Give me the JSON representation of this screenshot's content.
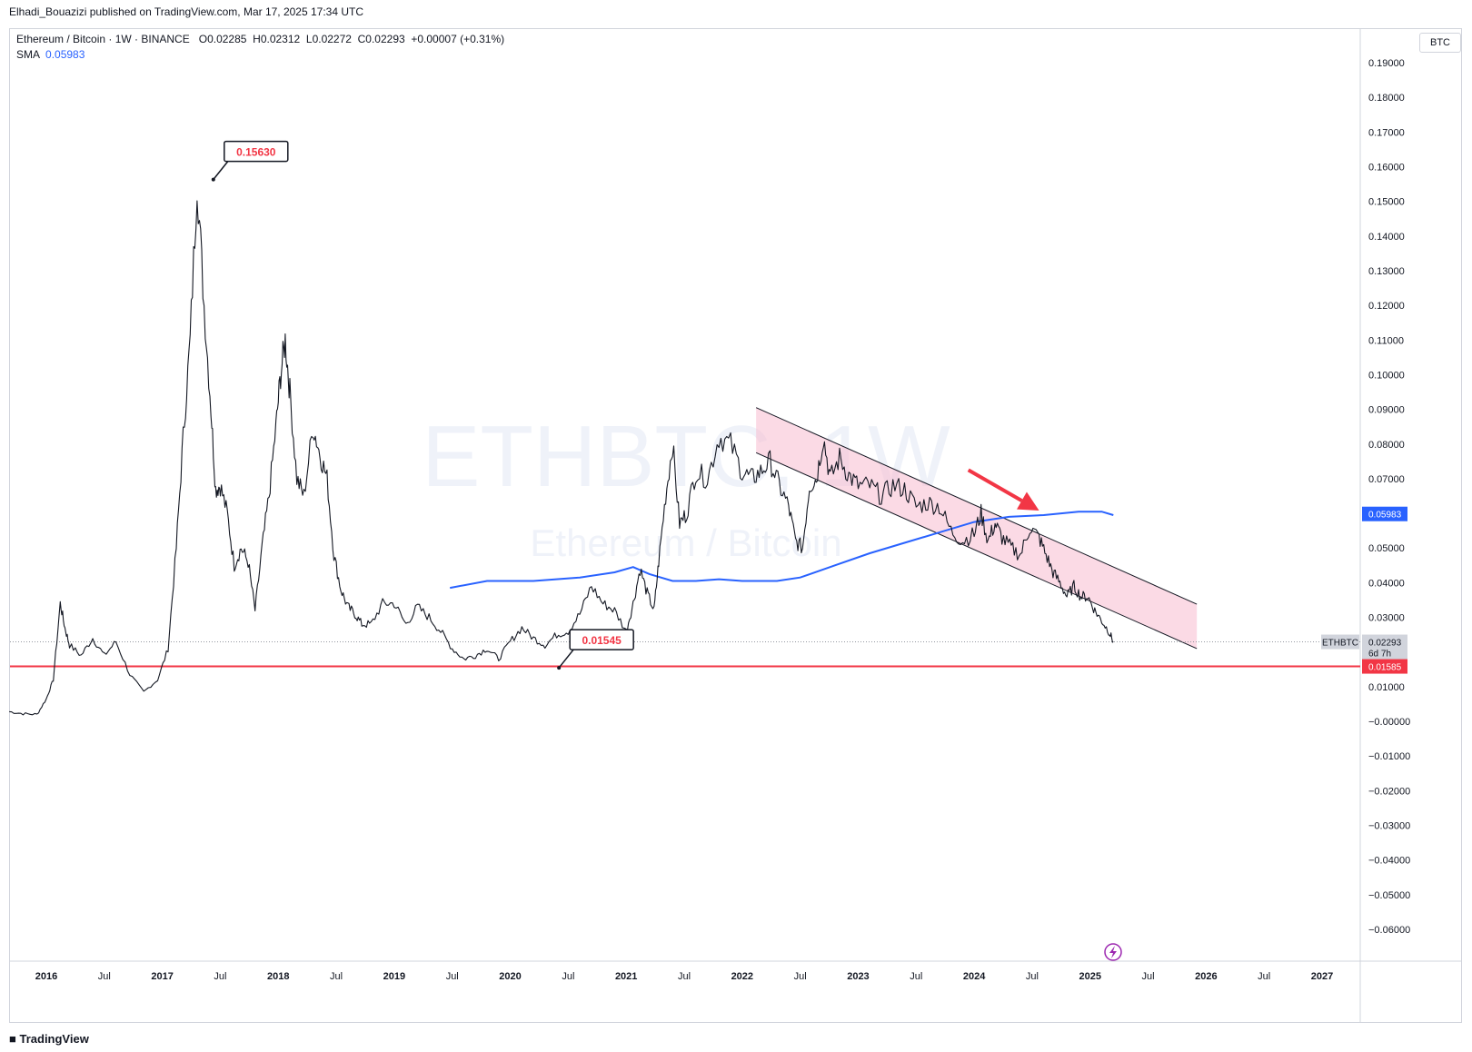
{
  "header": {
    "published_by": "Elhadi_Bouazizi published on TradingView.com, Mar 17, 2025 17:34 UTC"
  },
  "legend": {
    "symbol": "Ethereum / Bitcoin · 1W · BINANCE",
    "open_label": "O",
    "open": "0.02285",
    "high_label": "H",
    "high": "0.02312",
    "low_label": "L",
    "low": "0.02272",
    "close_label": "C",
    "close": "0.02293",
    "change": "+0.00007 (+0.31%)",
    "sma_label": "SMA",
    "sma_value": "0.05983"
  },
  "watermark": {
    "ticker": "ETHBTC, 1W",
    "name": "Ethereum / Bitcoin"
  },
  "axis": {
    "currency": "BTC"
  },
  "brand": {
    "logo_text": "TradingView"
  },
  "colors": {
    "up": "#131722",
    "sma": "#2962ff",
    "support": "#f23645",
    "channel_fill": "#f8bbd0",
    "annotation_text": "#f23645",
    "arrow": "#f23645"
  },
  "chart_data": {
    "type": "line",
    "symbol": "ETHBTC",
    "interval": "1W",
    "exchange": "BINANCE",
    "ylim": [
      -0.065,
      0.195
    ],
    "y_ticks": [
      "0.19000",
      "0.18000",
      "0.17000",
      "0.16000",
      "0.15000",
      "0.14000",
      "0.13000",
      "0.12000",
      "0.11000",
      "0.10000",
      "0.09000",
      "0.08000",
      "0.07000",
      "0.06000",
      "0.05000",
      "0.04000",
      "0.03000",
      "0.02000",
      "0.01000",
      "−0.00000",
      "−0.01000",
      "−0.02000",
      "−0.03000",
      "−0.04000",
      "−0.05000",
      "−0.06000"
    ],
    "y_tick_values": [
      0.19,
      0.18,
      0.17,
      0.16,
      0.15,
      0.14,
      0.13,
      0.12,
      0.11,
      0.1,
      0.09,
      0.08,
      0.07,
      0.06,
      0.05,
      0.04,
      0.03,
      0.02,
      0.01,
      0.0,
      -0.01,
      -0.02,
      -0.03,
      -0.04,
      -0.05,
      -0.06
    ],
    "x_ticks": [
      {
        "label": "2016",
        "t": 2016.0
      },
      {
        "label": "Jul",
        "t": 2016.5
      },
      {
        "label": "2017",
        "t": 2017.0
      },
      {
        "label": "Jul",
        "t": 2017.5
      },
      {
        "label": "2018",
        "t": 2018.0
      },
      {
        "label": "Jul",
        "t": 2018.5
      },
      {
        "label": "2019",
        "t": 2019.0
      },
      {
        "label": "Jul",
        "t": 2019.5
      },
      {
        "label": "2020",
        "t": 2020.0
      },
      {
        "label": "Jul",
        "t": 2020.5
      },
      {
        "label": "2021",
        "t": 2021.0
      },
      {
        "label": "Jul",
        "t": 2021.5
      },
      {
        "label": "2022",
        "t": 2022.0
      },
      {
        "label": "Jul",
        "t": 2022.5
      },
      {
        "label": "2023",
        "t": 2023.0
      },
      {
        "label": "Jul",
        "t": 2023.5
      },
      {
        "label": "2024",
        "t": 2024.0
      },
      {
        "label": "Jul",
        "t": 2024.5
      },
      {
        "label": "2025",
        "t": 2025.0
      },
      {
        "label": "Jul",
        "t": 2025.5
      },
      {
        "label": "2026",
        "t": 2026.0
      },
      {
        "label": "Jul",
        "t": 2026.5
      },
      {
        "label": "2027",
        "t": 2027.0
      }
    ],
    "xlim": [
      2015.68,
      2027.42
    ],
    "price_series": {
      "t": [
        2015.68,
        2015.8,
        2015.92,
        2016.0,
        2016.06,
        2016.12,
        2016.16,
        2016.2,
        2016.3,
        2016.4,
        2016.5,
        2016.6,
        2016.72,
        2016.84,
        2016.96,
        2017.05,
        2017.12,
        2017.18,
        2017.24,
        2017.3,
        2017.36,
        2017.42,
        2017.46,
        2017.5,
        2017.56,
        2017.62,
        2017.68,
        2017.74,
        2017.8,
        2017.86,
        2017.92,
        2017.98,
        2018.02,
        2018.06,
        2018.1,
        2018.16,
        2018.22,
        2018.3,
        2018.36,
        2018.42,
        2018.48,
        2018.54,
        2018.6,
        2018.66,
        2018.72,
        2018.8,
        2018.9,
        2019.0,
        2019.1,
        2019.2,
        2019.3,
        2019.4,
        2019.5,
        2019.6,
        2019.7,
        2019.8,
        2019.9,
        2020.0,
        2020.1,
        2020.2,
        2020.3,
        2020.4,
        2020.5,
        2020.6,
        2020.7,
        2020.8,
        2020.9,
        2021.0,
        2021.06,
        2021.12,
        2021.18,
        2021.24,
        2021.28,
        2021.34,
        2021.4,
        2021.46,
        2021.52,
        2021.6,
        2021.7,
        2021.8,
        2021.9,
        2022.0,
        2022.08,
        2022.16,
        2022.24,
        2022.32,
        2022.4,
        2022.46,
        2022.52,
        2022.58,
        2022.64,
        2022.7,
        2022.76,
        2022.84,
        2022.92,
        2023.0,
        2023.1,
        2023.2,
        2023.3,
        2023.4,
        2023.5,
        2023.6,
        2023.7,
        2023.8,
        2023.9,
        2024.0,
        2024.06,
        2024.12,
        2024.18,
        2024.24,
        2024.32,
        2024.4,
        2024.48,
        2024.56,
        2024.62,
        2024.68,
        2024.74,
        2024.8,
        2024.86,
        2024.92,
        2024.98,
        2025.04,
        2025.1,
        2025.16,
        2025.2
      ],
      "v": [
        0.0028,
        0.0022,
        0.002,
        0.0065,
        0.012,
        0.034,
        0.027,
        0.022,
        0.019,
        0.024,
        0.019,
        0.023,
        0.0135,
        0.0085,
        0.012,
        0.021,
        0.05,
        0.082,
        0.11,
        0.156,
        0.12,
        0.09,
        0.067,
        0.068,
        0.06,
        0.045,
        0.05,
        0.046,
        0.032,
        0.05,
        0.065,
        0.085,
        0.1,
        0.11,
        0.095,
        0.07,
        0.065,
        0.085,
        0.077,
        0.07,
        0.048,
        0.038,
        0.033,
        0.031,
        0.028,
        0.028,
        0.034,
        0.034,
        0.028,
        0.033,
        0.03,
        0.026,
        0.021,
        0.018,
        0.019,
        0.021,
        0.018,
        0.023,
        0.027,
        0.024,
        0.022,
        0.025,
        0.026,
        0.031,
        0.039,
        0.034,
        0.032,
        0.026,
        0.034,
        0.044,
        0.037,
        0.032,
        0.046,
        0.065,
        0.08,
        0.057,
        0.06,
        0.072,
        0.07,
        0.082,
        0.08,
        0.072,
        0.07,
        0.072,
        0.075,
        0.068,
        0.062,
        0.052,
        0.05,
        0.068,
        0.07,
        0.082,
        0.07,
        0.076,
        0.071,
        0.068,
        0.068,
        0.065,
        0.068,
        0.067,
        0.062,
        0.063,
        0.062,
        0.055,
        0.052,
        0.054,
        0.06,
        0.052,
        0.057,
        0.053,
        0.05,
        0.048,
        0.056,
        0.053,
        0.048,
        0.043,
        0.04,
        0.036,
        0.039,
        0.036,
        0.036,
        0.032,
        0.029,
        0.026,
        0.023
      ]
    },
    "sma": {
      "name": "SMA",
      "current": 0.05983,
      "t": [
        2019.48,
        2019.8,
        2020.2,
        2020.6,
        2020.9,
        2021.06,
        2021.2,
        2021.4,
        2021.6,
        2021.8,
        2022.0,
        2022.3,
        2022.5,
        2022.8,
        2023.1,
        2023.4,
        2023.7,
        2024.0,
        2024.3,
        2024.6,
        2024.9,
        2025.1,
        2025.2
      ],
      "v": [
        0.0385,
        0.0405,
        0.0405,
        0.0415,
        0.043,
        0.0445,
        0.0425,
        0.0405,
        0.0405,
        0.041,
        0.0405,
        0.0405,
        0.0415,
        0.045,
        0.0485,
        0.0515,
        0.0545,
        0.0575,
        0.059,
        0.0595,
        0.0605,
        0.0605,
        0.0595
      ]
    },
    "support_line": {
      "value": 0.01585,
      "label": "0.01585"
    },
    "channel": {
      "upper_start": {
        "t": 2022.12,
        "v": 0.0905
      },
      "upper_end": {
        "t": 2025.92,
        "v": 0.0338
      },
      "lower_start": {
        "t": 2022.12,
        "v": 0.0775
      },
      "lower_end": {
        "t": 2025.92,
        "v": 0.021
      }
    },
    "arrow": {
      "from": {
        "t": 2023.95,
        "v": 0.0725
      },
      "to": {
        "t": 2024.56,
        "v": 0.0608
      }
    },
    "annotations": [
      {
        "label": "0.15630",
        "t": 2017.44,
        "v": 0.1563
      },
      {
        "label": "0.01545",
        "t": 2020.42,
        "v": 0.01545
      }
    ],
    "price_labels": {
      "last_symbol": "ETHBTC",
      "last_price": "0.02293",
      "countdown": "6d 7h",
      "sma_value": "0.05983",
      "support": "0.01585"
    }
  }
}
